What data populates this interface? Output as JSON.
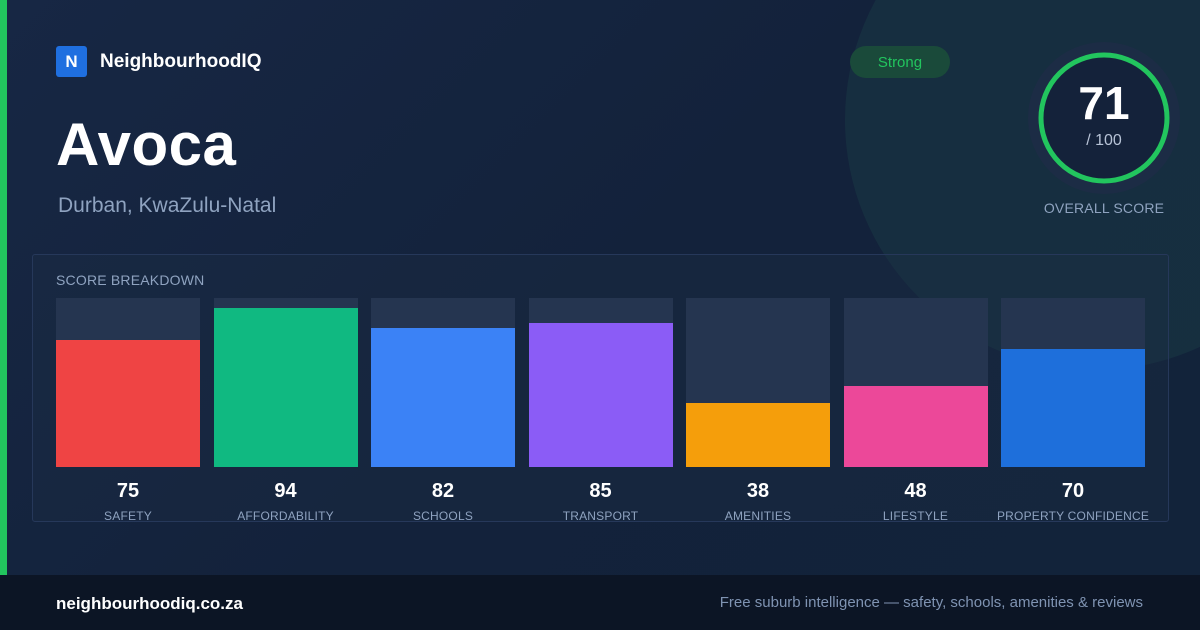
{
  "brand": {
    "logo_letter": "N",
    "name": "NeighbourhoodIQ",
    "logo_color": "#1f6fe0"
  },
  "suburb": {
    "name": "Avoca",
    "location": "Durban, KwaZulu-Natal"
  },
  "badge": {
    "text": "Strong",
    "color": "#22c55e"
  },
  "overall": {
    "score": "71",
    "denominator": "/ 100",
    "label": "OVERALL SCORE",
    "fraction": 0.71,
    "ring_color": "#22c55e"
  },
  "breakdown": {
    "title": "SCORE BREAKDOWN",
    "items": [
      {
        "label": "SAFETY",
        "value": "75",
        "color": "#ef4444"
      },
      {
        "label": "AFFORDABILITY",
        "value": "94",
        "color": "#10b981"
      },
      {
        "label": "SCHOOLS",
        "value": "82",
        "color": "#3b82f6"
      },
      {
        "label": "TRANSPORT",
        "value": "85",
        "color": "#8b5cf6"
      },
      {
        "label": "AMENITIES",
        "value": "38",
        "color": "#f59e0b"
      },
      {
        "label": "LIFESTYLE",
        "value": "48",
        "color": "#ec4899"
      },
      {
        "label": "PROPERTY CONFIDENCE",
        "value": "70",
        "color": "#1e6fdb"
      }
    ]
  },
  "footer": {
    "url": "neighbourhoodiq.co.za",
    "tagline": "Free suburb intelligence — safety, schools, amenities & reviews"
  },
  "colors": {
    "accent": "#22c55e",
    "background": "#13213a",
    "footer_bg": "#0c1525"
  }
}
